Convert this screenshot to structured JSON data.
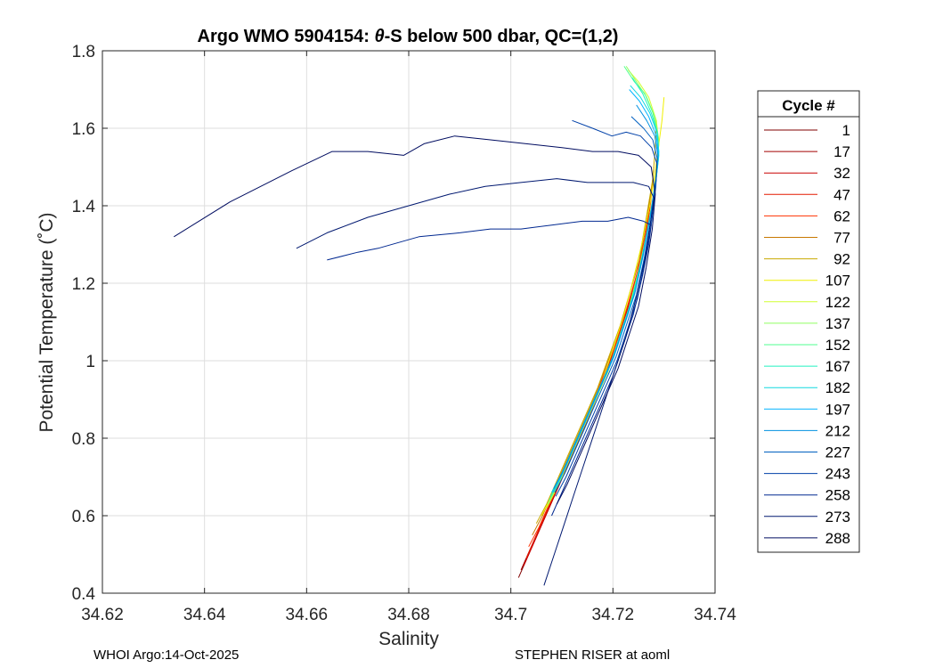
{
  "chart_data": {
    "type": "line",
    "title_prefix": "Argo WMO 5904154: ",
    "title_symbol": "θ",
    "title_suffix": "-S below 500 dbar,  QC=(1,2)",
    "xlabel": "Salinity",
    "ylabel": "Potential Temperature (˚C)",
    "xlim": [
      34.62,
      34.74
    ],
    "ylim": [
      0.4,
      1.8
    ],
    "xticks": [
      34.62,
      34.64,
      34.66,
      34.68,
      34.7,
      34.72,
      34.74
    ],
    "xtick_labels": [
      "34.62",
      "34.64",
      "34.66",
      "34.68",
      "34.7",
      "34.72",
      "34.74"
    ],
    "yticks": [
      0.4,
      0.6,
      0.8,
      1.0,
      1.2,
      1.4,
      1.6,
      1.8
    ],
    "ytick_labels": [
      "0.4",
      "0.6",
      "0.8",
      "1",
      "1.2",
      "1.4",
      "1.6",
      "1.8"
    ],
    "grid": true,
    "legend": {
      "title": "Cycle #",
      "placement": "outside-right",
      "entries": [
        {
          "label": "1",
          "color": "#800000"
        },
        {
          "label": "17",
          "color": "#a30000"
        },
        {
          "label": "32",
          "color": "#c80000"
        },
        {
          "label": "47",
          "color": "#e41a00"
        },
        {
          "label": "62",
          "color": "#ff3000"
        },
        {
          "label": "77",
          "color": "#c87800"
        },
        {
          "label": "92",
          "color": "#c8aa00"
        },
        {
          "label": "107",
          "color": "#f0f000"
        },
        {
          "label": "122",
          "color": "#d0ff30"
        },
        {
          "label": "137",
          "color": "#90ff60"
        },
        {
          "label": "152",
          "color": "#50ff90"
        },
        {
          "label": "167",
          "color": "#20f0c0"
        },
        {
          "label": "182",
          "color": "#10d8e0"
        },
        {
          "label": "197",
          "color": "#00b4ff"
        },
        {
          "label": "212",
          "color": "#0090e0"
        },
        {
          "label": "227",
          "color": "#0060c0"
        },
        {
          "label": "243",
          "color": "#0040a8"
        },
        {
          "label": "258",
          "color": "#002890"
        },
        {
          "label": "273",
          "color": "#001870"
        },
        {
          "label": "288",
          "color": "#000c60"
        }
      ]
    },
    "series": [
      {
        "name": "1",
        "color": "#800000",
        "x": [
          34.7015,
          34.7035,
          34.7055,
          34.7075,
          34.7095,
          34.7115,
          34.7135,
          34.716,
          34.7185,
          34.721,
          34.7235,
          34.7255,
          34.7265,
          34.727
        ],
        "y": [
          0.44,
          0.5,
          0.56,
          0.62,
          0.68,
          0.74,
          0.8,
          0.88,
          0.96,
          1.06,
          1.16,
          1.26,
          1.34,
          1.4
        ]
      },
      {
        "name": "17",
        "color": "#a30000",
        "x": [
          34.702,
          34.704,
          34.706,
          34.708,
          34.71,
          34.712,
          34.714,
          34.7165,
          34.719,
          34.7215,
          34.724,
          34.7258,
          34.7268,
          34.7272
        ],
        "y": [
          0.46,
          0.52,
          0.58,
          0.64,
          0.7,
          0.76,
          0.82,
          0.9,
          0.98,
          1.08,
          1.18,
          1.28,
          1.36,
          1.42
        ]
      },
      {
        "name": "32",
        "color": "#c80000",
        "x": [
          34.7025,
          34.7045,
          34.7065,
          34.7085,
          34.7105,
          34.7125,
          34.7145,
          34.717,
          34.7195,
          34.722,
          34.7242,
          34.726,
          34.727,
          34.7274
        ],
        "y": [
          0.47,
          0.53,
          0.59,
          0.65,
          0.71,
          0.77,
          0.83,
          0.91,
          0.99,
          1.09,
          1.19,
          1.29,
          1.37,
          1.43
        ]
      },
      {
        "name": "47",
        "color": "#e41a00",
        "x": [
          34.703,
          34.705,
          34.707,
          34.709,
          34.711,
          34.713,
          34.715,
          34.7173,
          34.7198,
          34.7222,
          34.7245,
          34.7262,
          34.7272,
          34.7276
        ],
        "y": [
          0.49,
          0.55,
          0.61,
          0.67,
          0.73,
          0.79,
          0.85,
          0.93,
          1.01,
          1.11,
          1.21,
          1.31,
          1.39,
          1.45
        ]
      },
      {
        "name": "62",
        "color": "#ff3000",
        "x": [
          34.7035,
          34.7055,
          34.7075,
          34.7095,
          34.7115,
          34.7135,
          34.7155,
          34.7178,
          34.7202,
          34.7226,
          34.7248,
          34.7264,
          34.7274,
          34.7278
        ],
        "y": [
          0.52,
          0.57,
          0.63,
          0.69,
          0.75,
          0.81,
          0.87,
          0.95,
          1.03,
          1.13,
          1.23,
          1.33,
          1.41,
          1.47
        ]
      },
      {
        "name": "77",
        "color": "#c87800",
        "x": [
          34.7042,
          34.7062,
          34.7082,
          34.7102,
          34.7122,
          34.7142,
          34.7162,
          34.7185,
          34.7208,
          34.723,
          34.7252,
          34.7266,
          34.7276,
          34.728
        ],
        "y": [
          0.55,
          0.6,
          0.66,
          0.72,
          0.78,
          0.84,
          0.9,
          0.98,
          1.06,
          1.16,
          1.26,
          1.36,
          1.44,
          1.5
        ]
      },
      {
        "name": "92",
        "color": "#c8aa00",
        "x": [
          34.705,
          34.707,
          34.709,
          34.711,
          34.713,
          34.715,
          34.717,
          34.7192,
          34.7214,
          34.7236,
          34.7255,
          34.7268,
          34.7278,
          34.7283,
          34.7285
        ],
        "y": [
          0.58,
          0.63,
          0.69,
          0.75,
          0.81,
          0.87,
          0.93,
          1.01,
          1.09,
          1.19,
          1.29,
          1.39,
          1.47,
          1.55,
          1.62
        ]
      },
      {
        "name": "107",
        "color": "#f0f000",
        "x": [
          34.706,
          34.708,
          34.71,
          34.712,
          34.714,
          34.716,
          34.718,
          34.72,
          34.722,
          34.724,
          34.7258,
          34.7272,
          34.7282,
          34.729,
          34.7296,
          34.73
        ],
        "y": [
          0.6,
          0.65,
          0.71,
          0.77,
          0.83,
          0.89,
          0.95,
          1.03,
          1.11,
          1.21,
          1.31,
          1.4,
          1.48,
          1.56,
          1.62,
          1.68
        ]
      },
      {
        "name": "122",
        "color": "#d0ff30",
        "x": [
          34.707,
          34.709,
          34.711,
          34.713,
          34.715,
          34.717,
          34.719,
          34.721,
          34.723,
          34.725,
          34.7266,
          34.7278,
          34.7286,
          34.729,
          34.7285,
          34.727,
          34.725,
          34.723
        ],
        "y": [
          0.62,
          0.67,
          0.73,
          0.79,
          0.85,
          0.91,
          0.97,
          1.05,
          1.13,
          1.23,
          1.33,
          1.42,
          1.5,
          1.56,
          1.62,
          1.68,
          1.72,
          1.75
        ]
      },
      {
        "name": "137",
        "color": "#90ff60",
        "x": [
          34.7072,
          34.7092,
          34.7112,
          34.7132,
          34.7152,
          34.7172,
          34.7192,
          34.7212,
          34.7232,
          34.7252,
          34.7268,
          34.728,
          34.7288,
          34.729,
          34.7282,
          34.7266,
          34.7246,
          34.7226
        ],
        "y": [
          0.63,
          0.68,
          0.74,
          0.8,
          0.86,
          0.92,
          0.98,
          1.06,
          1.14,
          1.24,
          1.34,
          1.43,
          1.51,
          1.57,
          1.63,
          1.68,
          1.72,
          1.76
        ]
      },
      {
        "name": "152",
        "color": "#50ff90",
        "x": [
          34.7075,
          34.7095,
          34.7115,
          34.7135,
          34.7155,
          34.7175,
          34.7195,
          34.7215,
          34.7235,
          34.7254,
          34.727,
          34.7282,
          34.7289,
          34.7288,
          34.7278,
          34.7262,
          34.7242,
          34.7222
        ],
        "y": [
          0.64,
          0.69,
          0.75,
          0.81,
          0.87,
          0.93,
          0.99,
          1.07,
          1.15,
          1.25,
          1.35,
          1.44,
          1.52,
          1.58,
          1.64,
          1.69,
          1.72,
          1.76
        ]
      },
      {
        "name": "167",
        "color": "#20f0c0",
        "x": [
          34.7078,
          34.7098,
          34.7118,
          34.7138,
          34.7158,
          34.7178,
          34.7198,
          34.7218,
          34.7238,
          34.7256,
          34.7271,
          34.7283,
          34.729,
          34.7287,
          34.7275,
          34.7258,
          34.7238
        ],
        "y": [
          0.65,
          0.7,
          0.76,
          0.82,
          0.88,
          0.94,
          1.0,
          1.08,
          1.16,
          1.26,
          1.36,
          1.45,
          1.53,
          1.59,
          1.64,
          1.69,
          1.73
        ]
      },
      {
        "name": "182",
        "color": "#10d8e0",
        "x": [
          34.708,
          34.71,
          34.712,
          34.714,
          34.716,
          34.718,
          34.72,
          34.722,
          34.724,
          34.7258,
          34.7272,
          34.7284,
          34.729,
          34.7286,
          34.7272,
          34.7254,
          34.7234
        ],
        "y": [
          0.66,
          0.71,
          0.77,
          0.83,
          0.89,
          0.95,
          1.01,
          1.09,
          1.17,
          1.27,
          1.37,
          1.46,
          1.54,
          1.59,
          1.64,
          1.68,
          1.71
        ]
      },
      {
        "name": "197",
        "color": "#00b4ff",
        "x": [
          34.7082,
          34.7102,
          34.7122,
          34.7142,
          34.7162,
          34.7182,
          34.7202,
          34.7222,
          34.7242,
          34.7259,
          34.7273,
          34.7284,
          34.7289,
          34.7285,
          34.727,
          34.7252,
          34.7232
        ],
        "y": [
          0.66,
          0.71,
          0.77,
          0.83,
          0.89,
          0.95,
          1.01,
          1.09,
          1.17,
          1.27,
          1.37,
          1.46,
          1.53,
          1.58,
          1.63,
          1.67,
          1.7
        ]
      },
      {
        "name": "212",
        "color": "#0090e0",
        "x": [
          34.7084,
          34.7104,
          34.7124,
          34.7144,
          34.7164,
          34.7184,
          34.7204,
          34.7224,
          34.7244,
          34.726,
          34.7274,
          34.7284,
          34.7288,
          34.7282,
          34.7266,
          34.7246
        ],
        "y": [
          0.67,
          0.72,
          0.78,
          0.84,
          0.9,
          0.96,
          1.02,
          1.1,
          1.18,
          1.28,
          1.38,
          1.47,
          1.53,
          1.58,
          1.62,
          1.66
        ]
      },
      {
        "name": "227",
        "color": "#0060c0",
        "x": [
          34.7086,
          34.7106,
          34.7126,
          34.7146,
          34.7166,
          34.7186,
          34.7206,
          34.7226,
          34.7246,
          34.7262,
          34.7275,
          34.7284,
          34.7287,
          34.7278,
          34.726,
          34.7236
        ],
        "y": [
          0.66,
          0.71,
          0.77,
          0.83,
          0.89,
          0.95,
          1.01,
          1.09,
          1.17,
          1.27,
          1.37,
          1.46,
          1.52,
          1.57,
          1.6,
          1.63
        ]
      },
      {
        "name": "243",
        "color": "#0040a8",
        "x": [
          34.7088,
          34.7108,
          34.7128,
          34.7148,
          34.7168,
          34.7188,
          34.7208,
          34.7228,
          34.7248,
          34.7263,
          34.7276,
          34.7284,
          34.7286,
          34.7276,
          34.7254,
          34.7226,
          34.7198,
          34.716,
          34.712
        ],
        "y": [
          0.65,
          0.7,
          0.76,
          0.82,
          0.88,
          0.94,
          1.0,
          1.08,
          1.16,
          1.26,
          1.36,
          1.45,
          1.51,
          1.55,
          1.58,
          1.59,
          1.58,
          1.6,
          1.62
        ]
      },
      {
        "name": "258",
        "color": "#002890",
        "x": [
          34.708,
          34.71,
          34.712,
          34.714,
          34.716,
          34.718,
          34.72,
          34.722,
          34.724,
          34.7258,
          34.727,
          34.7275,
          34.726,
          34.723,
          34.719,
          34.714,
          34.708,
          34.702,
          34.696,
          34.69,
          34.682,
          34.674,
          34.67,
          34.664
        ],
        "y": [
          0.6,
          0.66,
          0.72,
          0.78,
          0.84,
          0.9,
          0.96,
          1.04,
          1.12,
          1.22,
          1.3,
          1.35,
          1.36,
          1.37,
          1.36,
          1.36,
          1.35,
          1.34,
          1.34,
          1.33,
          1.32,
          1.29,
          1.28,
          1.26
        ]
      },
      {
        "name": "273",
        "color": "#001870",
        "x": [
          34.7065,
          34.7085,
          34.7105,
          34.7125,
          34.7145,
          34.7165,
          34.7185,
          34.7205,
          34.7225,
          34.7245,
          34.7262,
          34.7274,
          34.728,
          34.727,
          34.724,
          34.72,
          34.715,
          34.709,
          34.702,
          34.695,
          34.688,
          34.68,
          34.672,
          34.664,
          34.658
        ],
        "y": [
          0.42,
          0.5,
          0.58,
          0.66,
          0.74,
          0.82,
          0.9,
          0.98,
          1.06,
          1.16,
          1.26,
          1.36,
          1.42,
          1.45,
          1.46,
          1.46,
          1.46,
          1.47,
          1.46,
          1.45,
          1.43,
          1.4,
          1.37,
          1.33,
          1.29
        ]
      },
      {
        "name": "288",
        "color": "#000c60",
        "x": [
          34.709,
          34.711,
          34.713,
          34.715,
          34.717,
          34.719,
          34.721,
          34.723,
          34.725,
          34.7265,
          34.7277,
          34.7283,
          34.7275,
          34.725,
          34.721,
          34.716,
          34.71,
          34.703,
          34.696,
          34.689,
          34.683,
          34.679,
          34.672,
          34.665,
          34.657,
          34.645,
          34.634
        ],
        "y": [
          0.63,
          0.68,
          0.74,
          0.8,
          0.86,
          0.92,
          0.98,
          1.06,
          1.14,
          1.24,
          1.34,
          1.43,
          1.5,
          1.53,
          1.54,
          1.54,
          1.55,
          1.56,
          1.57,
          1.58,
          1.56,
          1.53,
          1.54,
          1.54,
          1.49,
          1.41,
          1.32
        ]
      }
    ],
    "footer_left": "WHOI Argo:14-Oct-2025",
    "footer_right": "STEPHEN RISER at aoml"
  }
}
